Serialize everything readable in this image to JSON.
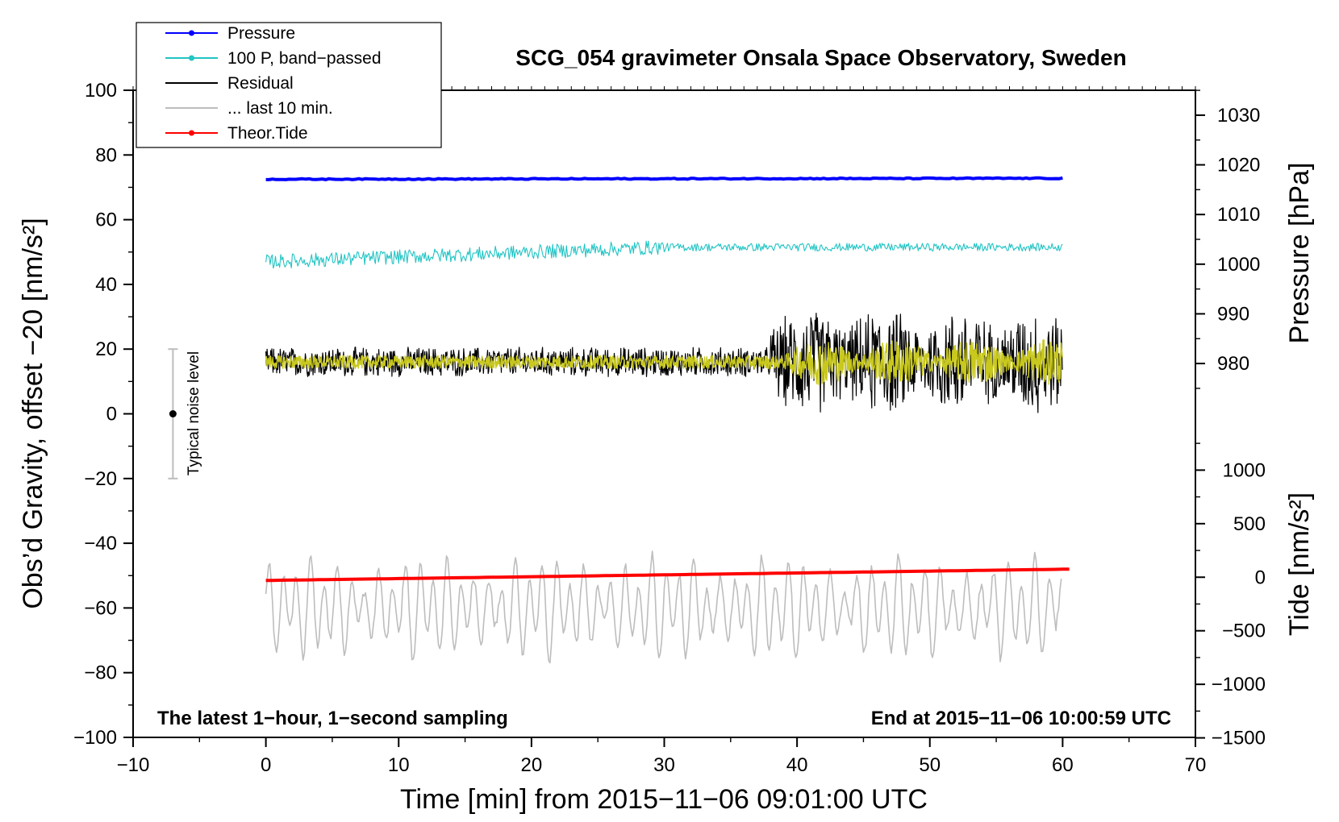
{
  "chart_data": {
    "type": "line",
    "title": "SCG_054 gravimeter Onsala Space Observatory, Sweden",
    "xlabel": "Time [min] from 2015−11−06 09:01:00 UTC",
    "ylabel_left": "Obs’d Gravity, offset −20 [nm/s²]",
    "ylabel_right_top": "Pressure [hPa]",
    "ylabel_right_bottom": "Tide [nm/s²]",
    "xlim": [
      -10,
      70
    ],
    "ylim_left": [
      -100,
      100
    ],
    "x_ticks": [
      -10,
      0,
      10,
      20,
      30,
      40,
      50,
      60,
      70
    ],
    "x_tick_labels": [
      "−10",
      "0",
      "10",
      "20",
      "30",
      "40",
      "50",
      "60",
      "70"
    ],
    "y_ticks_left": [
      100,
      80,
      60,
      40,
      20,
      0,
      -20,
      -40,
      -60,
      -80,
      -100
    ],
    "y_tick_labels_left": [
      "100",
      "80",
      "60",
      "40",
      "20",
      "0",
      "−20",
      "−40",
      "−60",
      "−80",
      "−100"
    ],
    "pressure_axis": {
      "ticks": [
        1030,
        1020,
        1010,
        1000,
        990,
        980
      ],
      "tick_labels": [
        "1030",
        "1020",
        "1010",
        "1000",
        "990",
        "980"
      ],
      "left_value_at_1030": 92.3,
      "left_per_hpa": 1.535
    },
    "tide_axis": {
      "ticks": [
        1000,
        500,
        0,
        -500,
        -1000,
        -1500
      ],
      "tick_labels": [
        "1000",
        "500",
        "0",
        "−500",
        "−1000",
        "−1500"
      ],
      "left_value_at_0": -50.5,
      "left_per_unit": 0.0331
    },
    "legend": [
      {
        "label": "Pressure",
        "color": "#0000ff",
        "marker": true
      },
      {
        "label": "100 P, band−passed",
        "color": "#22c4c4",
        "marker": true
      },
      {
        "label": "Residual",
        "color": "#000000",
        "marker": false
      },
      {
        "label": "... last 10 min.",
        "color": "#bdbdbd",
        "marker": false
      },
      {
        "label": "Theor.Tide",
        "color": "#ff0000",
        "marker": true
      }
    ],
    "annotations": {
      "bottom_left": "The latest 1−hour, 1−second sampling",
      "bottom_right": "End at 2015−11−06 10:00:59 UTC",
      "noise_label": "Typical noise level"
    },
    "noise_bar": {
      "x": -7,
      "y_min": -20,
      "y_max": 20,
      "y_center": 0
    },
    "series": [
      {
        "name": "Pressure",
        "color": "#0000ff",
        "x_range": [
          0,
          60
        ],
        "y_start": 72.5,
        "y_end": 72.8,
        "noise": 0.3
      },
      {
        "name": "100 P, band-passed",
        "color": "#22c4c4",
        "x_range": [
          0,
          60
        ],
        "y_start": 47,
        "y_end": 51.5,
        "noise": 2.2
      },
      {
        "name": "Residual",
        "color": "#000000",
        "x_range": [
          0,
          60
        ],
        "y_center": 16,
        "noise_early": 5,
        "noise_late": 18
      },
      {
        "name": "Residual smoothed",
        "color": "#c8c81e",
        "x_range": [
          0,
          60
        ],
        "y_center": 16,
        "noise": 2
      },
      {
        "name": "... last 10 min.",
        "color": "#bdbdbd",
        "x_range": [
          0,
          60
        ],
        "y_center": -60,
        "amplitude": 15
      },
      {
        "name": "Theor.Tide",
        "color": "#ff0000",
        "x_range": [
          0,
          60.5
        ],
        "y_start": -51.5,
        "y_end": -48
      }
    ]
  }
}
